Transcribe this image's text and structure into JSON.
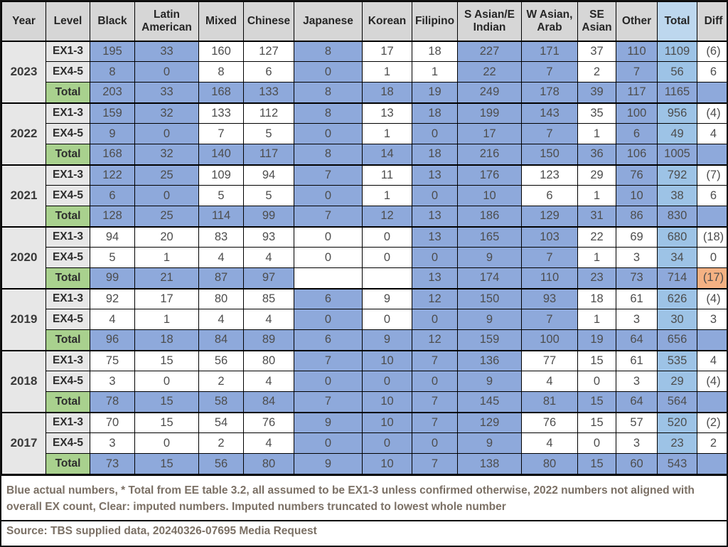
{
  "table": {
    "columns": [
      {
        "label": "Year"
      },
      {
        "label": "Level"
      },
      {
        "label": "Black"
      },
      {
        "label": "Latin American"
      },
      {
        "label": "Mixed"
      },
      {
        "label": "Chinese"
      },
      {
        "label": "Japanese"
      },
      {
        "label": "Korean"
      },
      {
        "label": "Filipino"
      },
      {
        "label": "S Asian/E Indian"
      },
      {
        "label": "W Asian, Arab"
      },
      {
        "label": "SE Asian"
      },
      {
        "label": "Other"
      },
      {
        "label": "Total",
        "bg": "#BDD7EE"
      },
      {
        "label": "Diff"
      }
    ],
    "cell_colors": {
      "b": "#8EA9DB",
      "w": "#FFFFFF",
      "t": "#9DC3E6",
      "o": "#F4B183"
    },
    "color_meaning": {
      "b": "blue = actual numbers",
      "w": "clear = imputed numbers",
      "t": "total column light blue",
      "o": "highlighted difference"
    },
    "groups": [
      {
        "year": "2023",
        "rows": [
          {
            "level": "EX1-3",
            "values": [
              "195",
              "33",
              "160",
              "127",
              "8",
              "17",
              "18",
              "227",
              "171",
              "37",
              "110",
              "1109",
              "(6)"
            ],
            "colors": [
              "b",
              "b",
              "w",
              "w",
              "b",
              "w",
              "w",
              "b",
              "b",
              "w",
              "b",
              "t",
              "w"
            ]
          },
          {
            "level": "EX4-5",
            "values": [
              "8",
              "0",
              "8",
              "6",
              "0",
              "1",
              "1",
              "22",
              "7",
              "2",
              "7",
              "56",
              "6"
            ],
            "colors": [
              "b",
              "b",
              "w",
              "w",
              "b",
              "w",
              "w",
              "b",
              "b",
              "w",
              "b",
              "t",
              "w"
            ]
          },
          {
            "level": "Total",
            "values": [
              "203",
              "33",
              "168",
              "133",
              "8",
              "18",
              "19",
              "249",
              "178",
              "39",
              "117",
              "1165",
              ""
            ],
            "colors": [
              "b",
              "b",
              "b",
              "b",
              "b",
              "b",
              "b",
              "b",
              "b",
              "b",
              "b",
              "b",
              "b"
            ]
          }
        ]
      },
      {
        "year": "2022",
        "rows": [
          {
            "level": "EX1-3",
            "values": [
              "159",
              "32",
              "133",
              "112",
              "8",
              "13",
              "18",
              "199",
              "143",
              "35",
              "100",
              "956",
              "(4)"
            ],
            "colors": [
              "b",
              "b",
              "w",
              "w",
              "b",
              "w",
              "b",
              "b",
              "b",
              "w",
              "b",
              "t",
              "w"
            ]
          },
          {
            "level": "EX4-5",
            "values": [
              "9",
              "0",
              "7",
              "5",
              "0",
              "1",
              "0",
              "17",
              "7",
              "1",
              "6",
              "49",
              "4"
            ],
            "colors": [
              "b",
              "b",
              "w",
              "w",
              "b",
              "w",
              "b",
              "b",
              "b",
              "w",
              "b",
              "t",
              "w"
            ]
          },
          {
            "level": "Total",
            "values": [
              "168",
              "32",
              "140",
              "117",
              "8",
              "14",
              "18",
              "216",
              "150",
              "36",
              "106",
              "1005",
              ""
            ],
            "colors": [
              "b",
              "b",
              "b",
              "b",
              "b",
              "b",
              "b",
              "b",
              "b",
              "b",
              "b",
              "b",
              "b"
            ]
          }
        ]
      },
      {
        "year": "2021",
        "rows": [
          {
            "level": "EX1-3",
            "values": [
              "122",
              "25",
              "109",
              "94",
              "7",
              "11",
              "13",
              "176",
              "123",
              "29",
              "76",
              "792",
              "(7)"
            ],
            "colors": [
              "b",
              "b",
              "w",
              "w",
              "b",
              "w",
              "b",
              "b",
              "w",
              "w",
              "b",
              "t",
              "w"
            ]
          },
          {
            "level": "EX4-5",
            "values": [
              "6",
              "0",
              "5",
              "5",
              "0",
              "1",
              "0",
              "10",
              "6",
              "1",
              "10",
              "38",
              "6"
            ],
            "colors": [
              "b",
              "b",
              "w",
              "w",
              "b",
              "w",
              "b",
              "b",
              "w",
              "w",
              "b",
              "t",
              "w"
            ]
          },
          {
            "level": "Total",
            "values": [
              "128",
              "25",
              "114",
              "99",
              "7",
              "12",
              "13",
              "186",
              "129",
              "31",
              "86",
              "830",
              ""
            ],
            "colors": [
              "b",
              "b",
              "b",
              "b",
              "b",
              "b",
              "b",
              "b",
              "b",
              "b",
              "b",
              "b",
              "b"
            ]
          }
        ]
      },
      {
        "year": "2020",
        "rows": [
          {
            "level": "EX1-3",
            "values": [
              "94",
              "20",
              "83",
              "93",
              "0",
              "0",
              "13",
              "165",
              "103",
              "22",
              "69",
              "680",
              "(18)"
            ],
            "colors": [
              "w",
              "w",
              "w",
              "w",
              "w",
              "w",
              "b",
              "b",
              "b",
              "w",
              "w",
              "t",
              "w"
            ]
          },
          {
            "level": "EX4-5",
            "values": [
              "5",
              "1",
              "4",
              "4",
              "0",
              "0",
              "0",
              "9",
              "7",
              "1",
              "3",
              "34",
              "0"
            ],
            "colors": [
              "w",
              "w",
              "w",
              "w",
              "w",
              "w",
              "b",
              "b",
              "b",
              "w",
              "w",
              "t",
              "w"
            ]
          },
          {
            "level": "Total",
            "values": [
              "99",
              "21",
              "87",
              "97",
              "",
              "",
              "13",
              "174",
              "110",
              "23",
              "73",
              "714",
              "(17)"
            ],
            "colors": [
              "b",
              "b",
              "b",
              "b",
              "w",
              "w",
              "b",
              "b",
              "b",
              "b",
              "b",
              "b",
              "o"
            ]
          }
        ]
      },
      {
        "year": "2019",
        "rows": [
          {
            "level": "EX1-3",
            "values": [
              "92",
              "17",
              "80",
              "85",
              "6",
              "9",
              "12",
              "150",
              "93",
              "18",
              "61",
              "626",
              "(4)"
            ],
            "colors": [
              "w",
              "w",
              "w",
              "w",
              "b",
              "w",
              "b",
              "b",
              "b",
              "w",
              "w",
              "t",
              "w"
            ]
          },
          {
            "level": "EX4-5",
            "values": [
              "4",
              "1",
              "4",
              "4",
              "0",
              "0",
              "0",
              "9",
              "7",
              "1",
              "3",
              "30",
              "3"
            ],
            "colors": [
              "w",
              "w",
              "w",
              "w",
              "b",
              "w",
              "b",
              "b",
              "b",
              "w",
              "w",
              "t",
              "w"
            ]
          },
          {
            "level": "Total",
            "values": [
              "96",
              "18",
              "84",
              "89",
              "6",
              "9",
              "12",
              "159",
              "100",
              "19",
              "64",
              "656",
              ""
            ],
            "colors": [
              "b",
              "b",
              "b",
              "b",
              "b",
              "b",
              "b",
              "b",
              "b",
              "b",
              "b",
              "b",
              "b"
            ]
          }
        ]
      },
      {
        "year": "2018",
        "rows": [
          {
            "level": "EX1-3",
            "values": [
              "75",
              "15",
              "56",
              "80",
              "7",
              "10",
              "7",
              "136",
              "77",
              "15",
              "61",
              "535",
              "4"
            ],
            "colors": [
              "w",
              "w",
              "w",
              "w",
              "b",
              "b",
              "b",
              "b",
              "w",
              "w",
              "w",
              "t",
              "w"
            ]
          },
          {
            "level": "EX4-5",
            "values": [
              "3",
              "0",
              "2",
              "4",
              "0",
              "0",
              "0",
              "9",
              "4",
              "0",
              "3",
              "29",
              "(4)"
            ],
            "colors": [
              "w",
              "w",
              "w",
              "w",
              "b",
              "b",
              "b",
              "b",
              "w",
              "w",
              "w",
              "t",
              "w"
            ]
          },
          {
            "level": "Total",
            "values": [
              "78",
              "15",
              "58",
              "84",
              "7",
              "10",
              "7",
              "145",
              "81",
              "15",
              "64",
              "564",
              ""
            ],
            "colors": [
              "b",
              "b",
              "b",
              "b",
              "b",
              "b",
              "b",
              "b",
              "b",
              "b",
              "b",
              "b",
              "b"
            ]
          }
        ]
      },
      {
        "year": "2017",
        "rows": [
          {
            "level": "EX1-3",
            "values": [
              "70",
              "15",
              "54",
              "76",
              "9",
              "10",
              "7",
              "129",
              "76",
              "15",
              "57",
              "520",
              "(2)"
            ],
            "colors": [
              "w",
              "w",
              "w",
              "w",
              "b",
              "b",
              "b",
              "b",
              "w",
              "w",
              "w",
              "t",
              "w"
            ]
          },
          {
            "level": "EX4-5",
            "values": [
              "3",
              "0",
              "2",
              "4",
              "0",
              "0",
              "0",
              "9",
              "4",
              "0",
              "3",
              "23",
              "2"
            ],
            "colors": [
              "w",
              "w",
              "w",
              "w",
              "b",
              "b",
              "b",
              "b",
              "w",
              "w",
              "w",
              "t",
              "w"
            ]
          },
          {
            "level": "Total",
            "values": [
              "73",
              "15",
              "56",
              "80",
              "9",
              "10",
              "7",
              "138",
              "80",
              "15",
              "60",
              "543",
              ""
            ],
            "colors": [
              "b",
              "b",
              "b",
              "b",
              "b",
              "b",
              "b",
              "b",
              "b",
              "b",
              "b",
              "b",
              "b"
            ]
          }
        ]
      }
    ]
  },
  "footnote": "Blue actual numbers, * Total from EE table 3.2, all assumed to be EX1-3 unless confirmed otherwise, 2022 numbers not aligned with overall EX count, Clear: imputed numbers. Imputed numbers truncated to lowest whole number",
  "source": "Source: TBS supplied data, 20240326-07695 Media Request"
}
